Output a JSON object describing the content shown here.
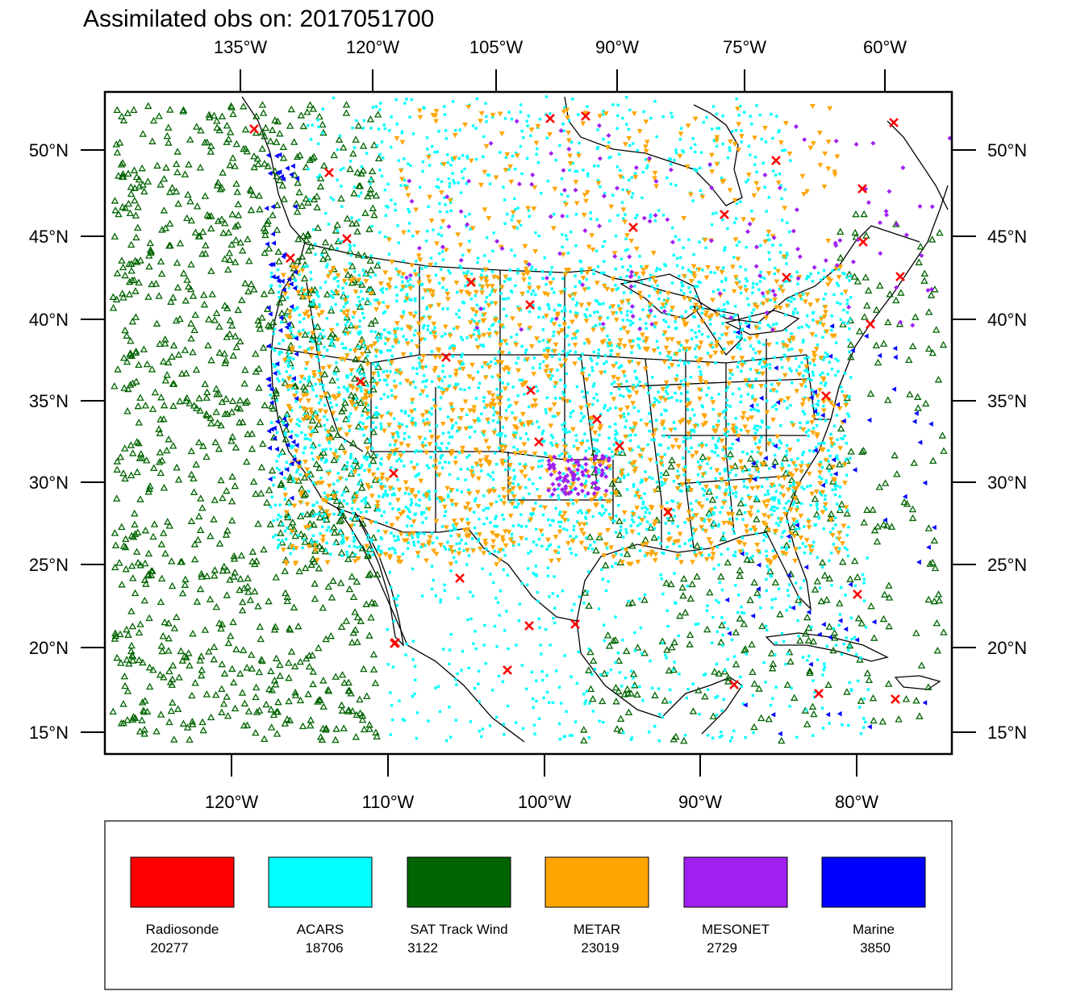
{
  "title": "Assimilated obs on: 2017051700",
  "axes": {
    "top_lon_labels": [
      "135°W",
      "120°W",
      "105°W",
      "90°W",
      "75°W",
      "60°W"
    ],
    "bottom_lon_labels": [
      "120°W",
      "110°W",
      "100°W",
      "90°W",
      "80°W"
    ],
    "lat_labels": [
      "50°N",
      "45°N",
      "40°N",
      "35°N",
      "30°N",
      "25°N",
      "20°N",
      "15°N"
    ]
  },
  "legend": [
    {
      "name": "Radiosonde",
      "count": "20277",
      "color": "#ff0000",
      "marker": "x-cross"
    },
    {
      "name": "ACARS",
      "count": "18706",
      "color": "#00ffff",
      "marker": "dot"
    },
    {
      "name": "SAT Track Wind",
      "count": "3122",
      "color": "#006400",
      "marker": "triangle-up"
    },
    {
      "name": "METAR",
      "count": "23019",
      "color": "#ffa500",
      "marker": "triangle-down"
    },
    {
      "name": "MESONET",
      "count": "2729",
      "color": "#a020f0",
      "marker": "diamond"
    },
    {
      "name": "Marine",
      "count": "3850",
      "color": "#0000ff",
      "marker": "triangle-left"
    }
  ]
}
